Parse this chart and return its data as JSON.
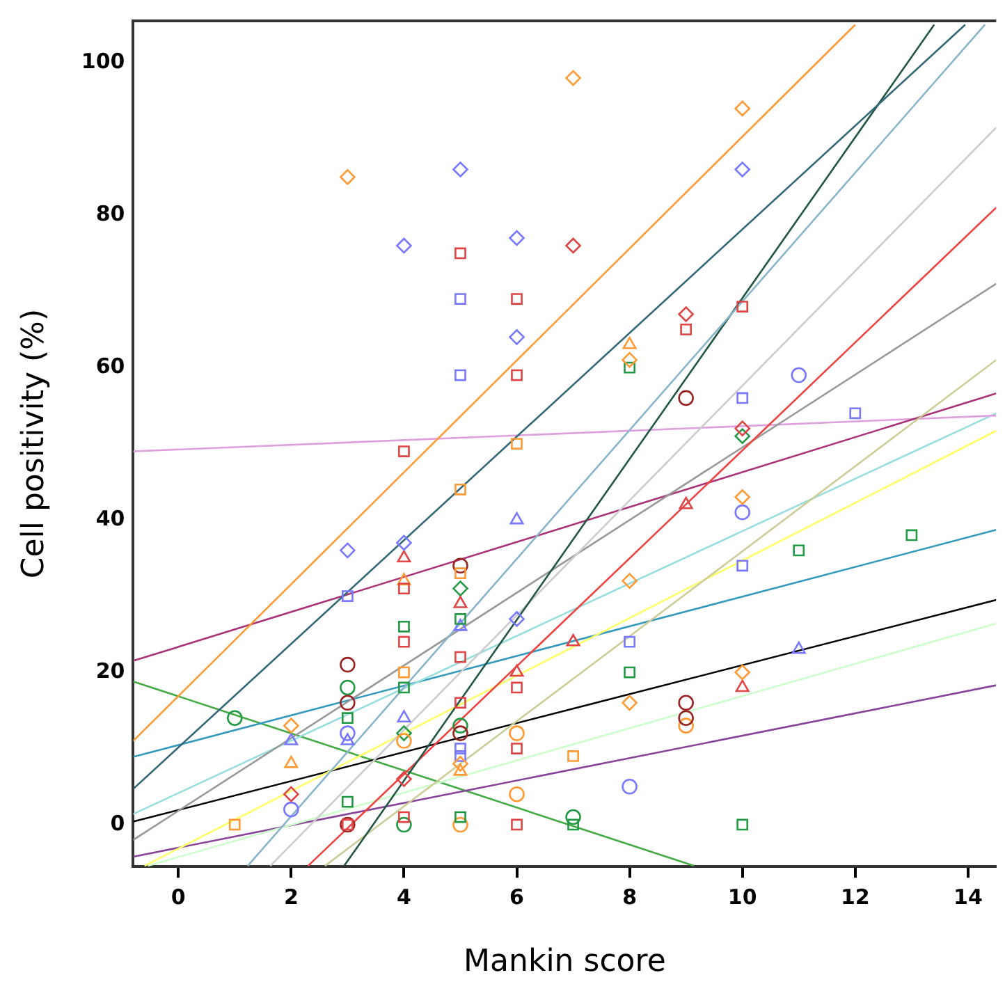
{
  "chart_data": {
    "type": "scatter",
    "xlabel": "Mankin score",
    "ylabel": "Cell positivity (%)",
    "xlim": [
      -0.8,
      14.5
    ],
    "ylim": [
      -5.5,
      105.5
    ],
    "xticks": [
      0,
      2,
      4,
      6,
      8,
      10,
      12,
      14
    ],
    "yticks": [
      0,
      20,
      40,
      60,
      80,
      100
    ],
    "grid": false,
    "legend": false,
    "series": [
      {
        "color": "#7777ff",
        "marker": "diamond",
        "x": [
          4,
          5,
          6,
          6,
          10,
          3,
          4,
          6
        ],
        "values": [
          76,
          86,
          77,
          64,
          86,
          36,
          37,
          27
        ]
      },
      {
        "color": "#e04444",
        "marker": "diamond",
        "x": [
          7,
          9,
          10,
          4,
          2
        ],
        "values": [
          76,
          67,
          52,
          6,
          4
        ]
      },
      {
        "color": "#ff9933",
        "marker": "diamond",
        "x": [
          3,
          7,
          10,
          8,
          10,
          8,
          8,
          10,
          2,
          5
        ],
        "values": [
          85,
          98,
          94,
          61,
          43,
          32,
          16,
          20,
          13,
          8
        ]
      },
      {
        "color": "#7777ff",
        "marker": "square",
        "x": [
          5,
          5,
          3,
          10,
          12,
          10,
          8,
          5,
          5
        ],
        "values": [
          69,
          59,
          30,
          56,
          54,
          34,
          24,
          10,
          9
        ]
      },
      {
        "color": "#e04444",
        "marker": "square",
        "x": [
          5,
          6,
          6,
          4,
          10,
          9,
          4,
          4,
          5,
          5,
          6,
          6,
          4,
          3,
          6
        ],
        "values": [
          75,
          69,
          59,
          49,
          68,
          65,
          31,
          24,
          22,
          16,
          18,
          10,
          1,
          0,
          0
        ]
      },
      {
        "color": "#ff9933",
        "marker": "square",
        "x": [
          6,
          5,
          5,
          7,
          1,
          4
        ],
        "values": [
          50,
          44,
          33,
          9,
          0,
          20
        ]
      },
      {
        "color": "#229944",
        "marker": "square",
        "x": [
          8,
          4,
          5,
          3,
          4,
          11,
          8,
          13,
          10,
          7,
          3,
          5
        ],
        "values": [
          60,
          26,
          27,
          14,
          18,
          36,
          20,
          38,
          0,
          0,
          3,
          1
        ]
      },
      {
        "color": "#7777ff",
        "marker": "circle",
        "x": [
          11,
          10,
          8,
          2,
          3
        ],
        "values": [
          59,
          41,
          5,
          2,
          12
        ]
      },
      {
        "color": "#992222",
        "marker": "circle",
        "x": [
          9,
          3,
          3,
          5,
          5,
          9,
          9,
          3
        ],
        "values": [
          56,
          21,
          16,
          34,
          12,
          16,
          14,
          0
        ]
      },
      {
        "color": "#ff9933",
        "marker": "circle",
        "x": [
          6,
          6,
          9,
          4,
          5
        ],
        "values": [
          12,
          4,
          13,
          11,
          0
        ]
      },
      {
        "color": "#229944",
        "marker": "circle",
        "x": [
          1,
          3,
          7,
          5,
          4
        ],
        "values": [
          14,
          18,
          1,
          13,
          0
        ]
      },
      {
        "color": "#7777ff",
        "marker": "triangle",
        "x": [
          6,
          5,
          3,
          11,
          4,
          2
        ],
        "values": [
          40,
          26,
          11,
          23,
          14,
          11
        ]
      },
      {
        "color": "#e04444",
        "marker": "triangle",
        "x": [
          4,
          5,
          9,
          10,
          6,
          7
        ],
        "values": [
          35,
          29,
          42,
          18,
          20,
          24
        ]
      },
      {
        "color": "#ff9933",
        "marker": "triangle",
        "x": [
          8,
          4,
          2,
          5
        ],
        "values": [
          63,
          32,
          8,
          7
        ]
      },
      {
        "color": "#229944",
        "marker": "diamond",
        "x": [
          10,
          5,
          4
        ],
        "values": [
          51,
          31,
          12
        ]
      },
      {
        "type": "line",
        "color": "#ff9933",
        "x": [
          -0.8,
          12
        ],
        "values": [
          11,
          105
        ]
      },
      {
        "type": "line",
        "color": "#336677",
        "x": [
          -0.8,
          13.95
        ],
        "values": [
          4.7,
          105
        ]
      },
      {
        "type": "line",
        "color": "#88b4cc",
        "x": [
          1.23,
          14.3
        ],
        "values": [
          -5.4,
          105
        ]
      },
      {
        "type": "line",
        "color": "#225544",
        "x": [
          2.94,
          13.4
        ],
        "values": [
          -5.4,
          105
        ]
      },
      {
        "type": "line",
        "color": "#cccccc",
        "x": [
          1.63,
          14.5
        ],
        "values": [
          -5.4,
          91.5
        ]
      },
      {
        "type": "line",
        "color": "#ee4444",
        "x": [
          2.3,
          14.5
        ],
        "values": [
          -5.4,
          81
        ]
      },
      {
        "type": "line",
        "color": "#999999",
        "x": [
          -0.8,
          14.5
        ],
        "values": [
          -2,
          71
        ]
      },
      {
        "type": "line",
        "color": "#cccc99",
        "x": [
          2.6,
          14.5
        ],
        "values": [
          -5.4,
          61
        ]
      },
      {
        "type": "line",
        "color": "#aa3377",
        "x": [
          -0.8,
          14.5
        ],
        "values": [
          21.5,
          56.6
        ]
      },
      {
        "type": "line",
        "color": "#dda0dd",
        "x": [
          -0.8,
          14.5
        ],
        "values": [
          49,
          53.7
        ]
      },
      {
        "type": "line",
        "color": "#99dddd",
        "x": [
          -0.8,
          14.5
        ],
        "values": [
          1.4,
          54
        ]
      },
      {
        "type": "line",
        "color": "#ffff66",
        "x": [
          -0.6,
          14.5
        ],
        "values": [
          -5.4,
          51.7
        ]
      },
      {
        "type": "line",
        "color": "#3399bb",
        "x": [
          -0.8,
          14.5
        ],
        "values": [
          8.9,
          38.7
        ]
      },
      {
        "type": "line",
        "color": "#000000",
        "x": [
          -0.8,
          14.5
        ],
        "values": [
          0.4,
          29.5
        ]
      },
      {
        "type": "line",
        "color": "#ccffcc",
        "x": [
          -0.54,
          14.5
        ],
        "values": [
          -5.4,
          26.4
        ]
      },
      {
        "type": "line",
        "color": "#884499",
        "x": [
          -0.8,
          14.5
        ],
        "values": [
          -4.2,
          18.3
        ]
      },
      {
        "type": "line",
        "color": "#44aa44",
        "x": [
          -0.8,
          9.14
        ],
        "values": [
          18.8,
          -5.4
        ]
      }
    ]
  }
}
